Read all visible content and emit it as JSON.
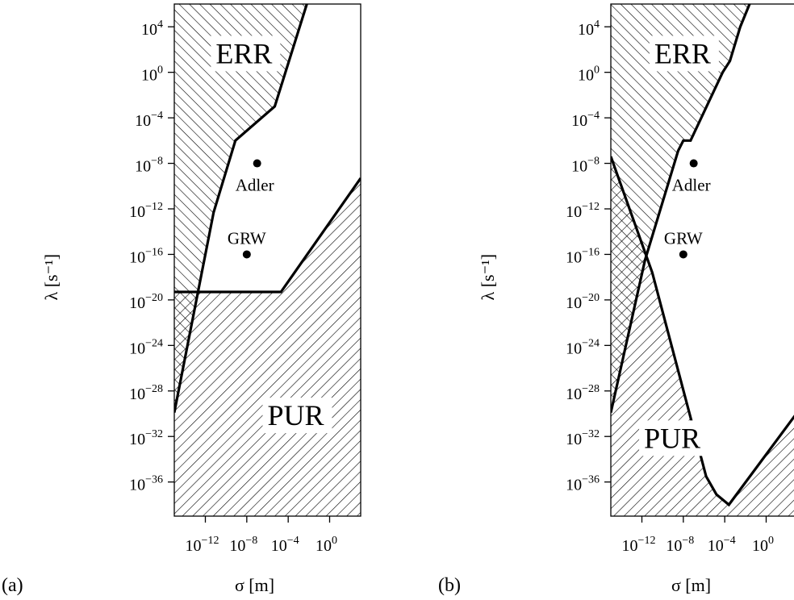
{
  "chart_data": [
    {
      "type": "line",
      "panel_label": "(a)",
      "xlabel": "σ [m]",
      "ylabel": "λ [s⁻¹]",
      "xscale": "log",
      "yscale": "log",
      "xlim_log10": [
        -15,
        3
      ],
      "ylim_log10": [
        -39,
        6
      ],
      "x_ticks": [
        {
          "base": "10",
          "exp": "−12",
          "v": -12
        },
        {
          "base": "10",
          "exp": "−8",
          "v": -8
        },
        {
          "base": "10",
          "exp": "−4",
          "v": -4
        },
        {
          "base": "10",
          "exp": "0",
          "v": 0
        }
      ],
      "y_ticks": [
        {
          "base": "10",
          "exp": "4",
          "v": 4
        },
        {
          "base": "10",
          "exp": "0",
          "v": 0
        },
        {
          "base": "10",
          "exp": "−4",
          "v": -4
        },
        {
          "base": "10",
          "exp": "−8",
          "v": -8
        },
        {
          "base": "10",
          "exp": "−12",
          "v": -12
        },
        {
          "base": "10",
          "exp": "−16",
          "v": -16
        },
        {
          "base": "10",
          "exp": "−20",
          "v": -20
        },
        {
          "base": "10",
          "exp": "−24",
          "v": -24
        },
        {
          "base": "10",
          "exp": "−28",
          "v": -28
        },
        {
          "base": "10",
          "exp": "−32",
          "v": -32
        },
        {
          "base": "10",
          "exp": "−36",
          "v": -36
        }
      ],
      "regions": [
        {
          "name": "ERR",
          "hatch": "back-diagonal",
          "boundary_log10": [
            [
              -15,
              -29.9
            ],
            [
              -11.2,
              -12.3
            ],
            [
              -9.1,
              -6.0
            ],
            [
              -5.3,
              -3.0
            ],
            [
              -2.2,
              6.0
            ]
          ]
        },
        {
          "name": "PUR",
          "hatch": "forward-diagonal",
          "boundary_log10": [
            [
              -15,
              -19.3
            ],
            [
              -4.7,
              -19.3
            ],
            [
              3.0,
              -9.3
            ]
          ]
        }
      ],
      "points": [
        {
          "name": "Adler",
          "x_log10": -7.0,
          "y_log10": -8.0
        },
        {
          "name": "GRW",
          "x_log10": -8.0,
          "y_log10": -16.0
        }
      ]
    },
    {
      "type": "line",
      "panel_label": "(b)",
      "xlabel": "σ [m]",
      "ylabel": "λ [s⁻¹]",
      "xscale": "log",
      "yscale": "log",
      "xlim_log10": [
        -15,
        3
      ],
      "ylim_log10": [
        -39,
        6
      ],
      "x_ticks": [
        {
          "base": "10",
          "exp": "−12",
          "v": -12
        },
        {
          "base": "10",
          "exp": "−8",
          "v": -8
        },
        {
          "base": "10",
          "exp": "−4",
          "v": -4
        },
        {
          "base": "10",
          "exp": "0",
          "v": 0
        }
      ],
      "y_ticks": [
        {
          "base": "10",
          "exp": "4",
          "v": 4
        },
        {
          "base": "10",
          "exp": "0",
          "v": 0
        },
        {
          "base": "10",
          "exp": "−4",
          "v": -4
        },
        {
          "base": "10",
          "exp": "−8",
          "v": -8
        },
        {
          "base": "10",
          "exp": "−12",
          "v": -12
        },
        {
          "base": "10",
          "exp": "−16",
          "v": -16
        },
        {
          "base": "10",
          "exp": "−20",
          "v": -20
        },
        {
          "base": "10",
          "exp": "−24",
          "v": -24
        },
        {
          "base": "10",
          "exp": "−28",
          "v": -28
        },
        {
          "base": "10",
          "exp": "−32",
          "v": -32
        },
        {
          "base": "10",
          "exp": "−36",
          "v": -36
        }
      ],
      "regions": [
        {
          "name": "ERR",
          "hatch": "back-diagonal",
          "boundary_log10": [
            [
              -15,
              -29.9
            ],
            [
              -11.7,
              -16.5
            ],
            [
              -8.5,
              -6.9
            ],
            [
              -8.0,
              -6.0
            ],
            [
              -7.3,
              -6.0
            ],
            [
              -4.2,
              0.0
            ],
            [
              -3.5,
              1.0
            ],
            [
              -2.5,
              4.0
            ],
            [
              -1.6,
              6.0
            ]
          ]
        },
        {
          "name": "PUR",
          "hatch": "forward-diagonal",
          "boundary_log10": [
            [
              -15,
              -7.4
            ],
            [
              -11.0,
              -17.6
            ],
            [
              -5.8,
              -35.5
            ],
            [
              -4.8,
              -37.1
            ],
            [
              -3.6,
              -38.0
            ],
            [
              3.0,
              -29.9
            ]
          ]
        }
      ],
      "points": [
        {
          "name": "Adler",
          "x_log10": -7.0,
          "y_log10": -8.0
        },
        {
          "name": "GRW",
          "x_log10": -8.0,
          "y_log10": -16.0
        }
      ]
    }
  ]
}
